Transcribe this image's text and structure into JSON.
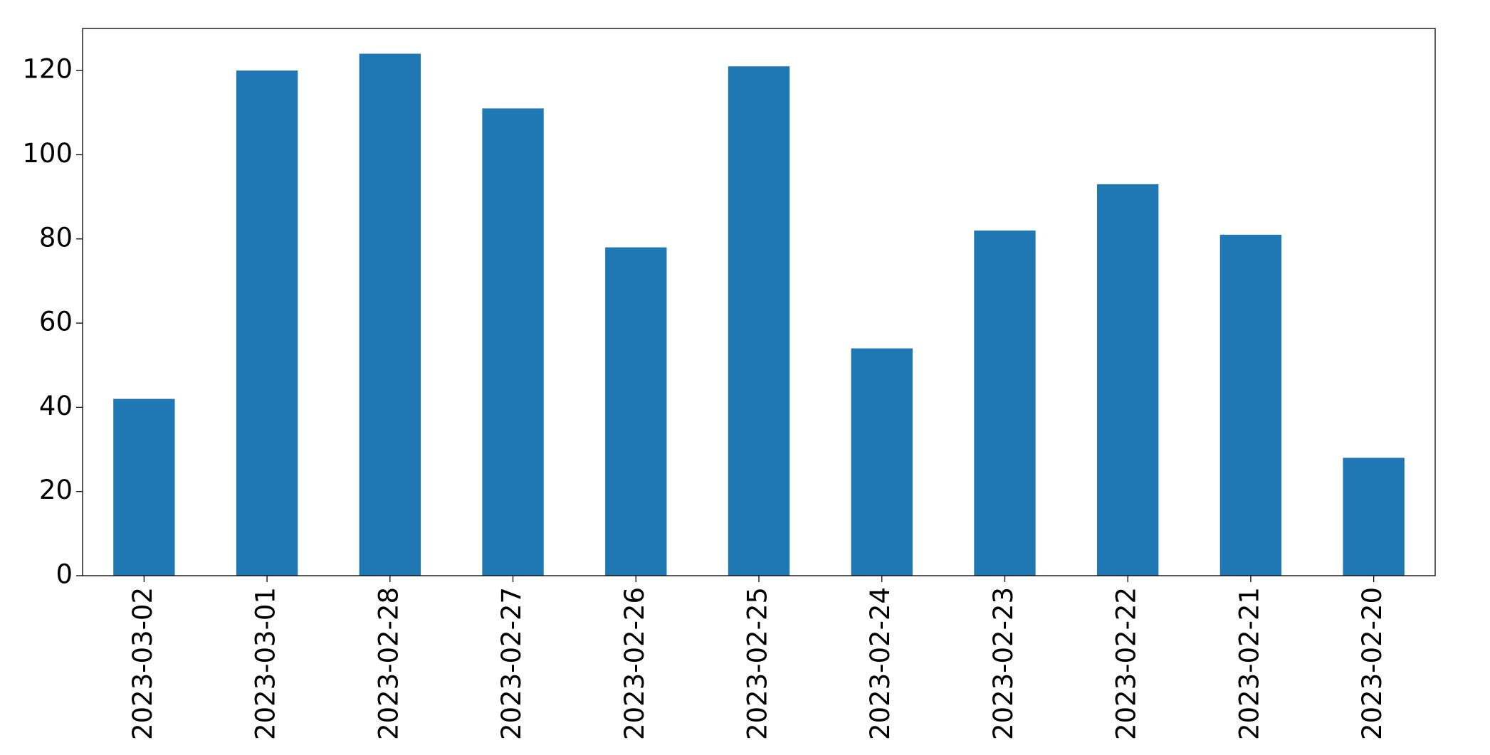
{
  "chart_data": {
    "type": "bar",
    "categories": [
      "2023-03-02",
      "2023-03-01",
      "2023-02-28",
      "2023-02-27",
      "2023-02-26",
      "2023-02-25",
      "2023-02-24",
      "2023-02-23",
      "2023-02-22",
      "2023-02-21",
      "2023-02-20"
    ],
    "values": [
      42,
      120,
      124,
      111,
      78,
      121,
      54,
      82,
      93,
      81,
      28
    ],
    "color": "#1f77b4",
    "ylim": [
      0,
      130
    ],
    "yticks": [
      0,
      20,
      40,
      60,
      80,
      100,
      120
    ],
    "grid": false
  }
}
